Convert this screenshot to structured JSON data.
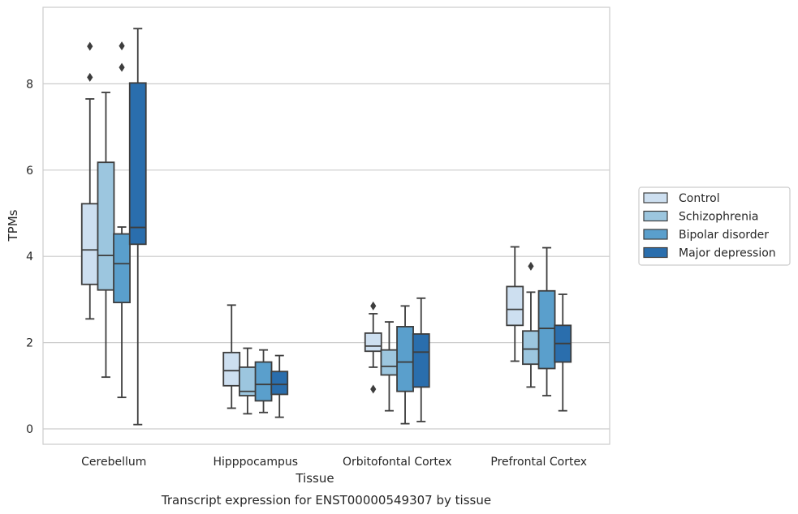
{
  "caption": "Transcript expression for ENST00000549307 by tissue",
  "chart_data": {
    "type": "box",
    "xlabel": "Tissue",
    "ylabel": "TPMs",
    "ylim": [
      -0.35,
      9.7
    ],
    "yticks": [
      0,
      2,
      4,
      6,
      8
    ],
    "grid": "horizontal",
    "legend_position": "right",
    "categories": [
      "Cerebellum",
      "Hipppocampus",
      "Orbitofontal Cortex",
      "Prefrontal Cortex"
    ],
    "series": [
      {
        "name": "Control",
        "color": "#cddff0",
        "boxes": [
          {
            "whislo": 2.55,
            "q1": 3.35,
            "med": 4.15,
            "q3": 5.22,
            "whishi": 7.65,
            "fliers": [
              8.15,
              8.87
            ]
          },
          {
            "whislo": 0.48,
            "q1": 1.0,
            "med": 1.35,
            "q3": 1.77,
            "whishi": 2.87,
            "fliers": []
          },
          {
            "whislo": 1.43,
            "q1": 1.8,
            "med": 1.92,
            "q3": 2.22,
            "whishi": 2.67,
            "fliers": [
              0.92,
              2.85
            ]
          },
          {
            "whislo": 1.57,
            "q1": 2.4,
            "med": 2.77,
            "q3": 3.3,
            "whishi": 4.22,
            "fliers": []
          }
        ]
      },
      {
        "name": "Schizophrenia",
        "color": "#9cc6df",
        "boxes": [
          {
            "whislo": 1.2,
            "q1": 3.22,
            "med": 4.02,
            "q3": 6.18,
            "whishi": 7.8,
            "fliers": []
          },
          {
            "whislo": 0.35,
            "q1": 0.77,
            "med": 0.87,
            "q3": 1.43,
            "whishi": 1.87,
            "fliers": []
          },
          {
            "whislo": 0.42,
            "q1": 1.25,
            "med": 1.45,
            "q3": 1.83,
            "whishi": 2.48,
            "fliers": []
          },
          {
            "whislo": 0.97,
            "q1": 1.5,
            "med": 1.85,
            "q3": 2.27,
            "whishi": 3.17,
            "fliers": [
              3.77
            ]
          }
        ]
      },
      {
        "name": "Bipolar disorder",
        "color": "#5a9fcc",
        "boxes": [
          {
            "whislo": 0.73,
            "q1": 2.93,
            "med": 3.83,
            "q3": 4.52,
            "whishi": 4.68,
            "fliers": [
              8.38,
              8.88
            ]
          },
          {
            "whislo": 0.38,
            "q1": 0.65,
            "med": 1.03,
            "q3": 1.55,
            "whishi": 1.83,
            "fliers": []
          },
          {
            "whislo": 0.12,
            "q1": 0.87,
            "med": 1.55,
            "q3": 2.37,
            "whishi": 2.85,
            "fliers": []
          },
          {
            "whislo": 0.77,
            "q1": 1.4,
            "med": 2.33,
            "q3": 3.2,
            "whishi": 4.2,
            "fliers": []
          }
        ]
      },
      {
        "name": "Major depression",
        "color": "#2a6ead",
        "boxes": [
          {
            "whislo": 0.1,
            "q1": 4.28,
            "med": 4.67,
            "q3": 8.02,
            "whishi": 9.28,
            "fliers": []
          },
          {
            "whislo": 0.27,
            "q1": 0.8,
            "med": 1.03,
            "q3": 1.33,
            "whishi": 1.7,
            "fliers": []
          },
          {
            "whislo": 0.17,
            "q1": 0.97,
            "med": 1.78,
            "q3": 2.2,
            "whishi": 3.03,
            "fliers": []
          },
          {
            "whislo": 0.42,
            "q1": 1.55,
            "med": 1.98,
            "q3": 2.4,
            "whishi": 3.12,
            "fliers": []
          }
        ]
      }
    ]
  }
}
